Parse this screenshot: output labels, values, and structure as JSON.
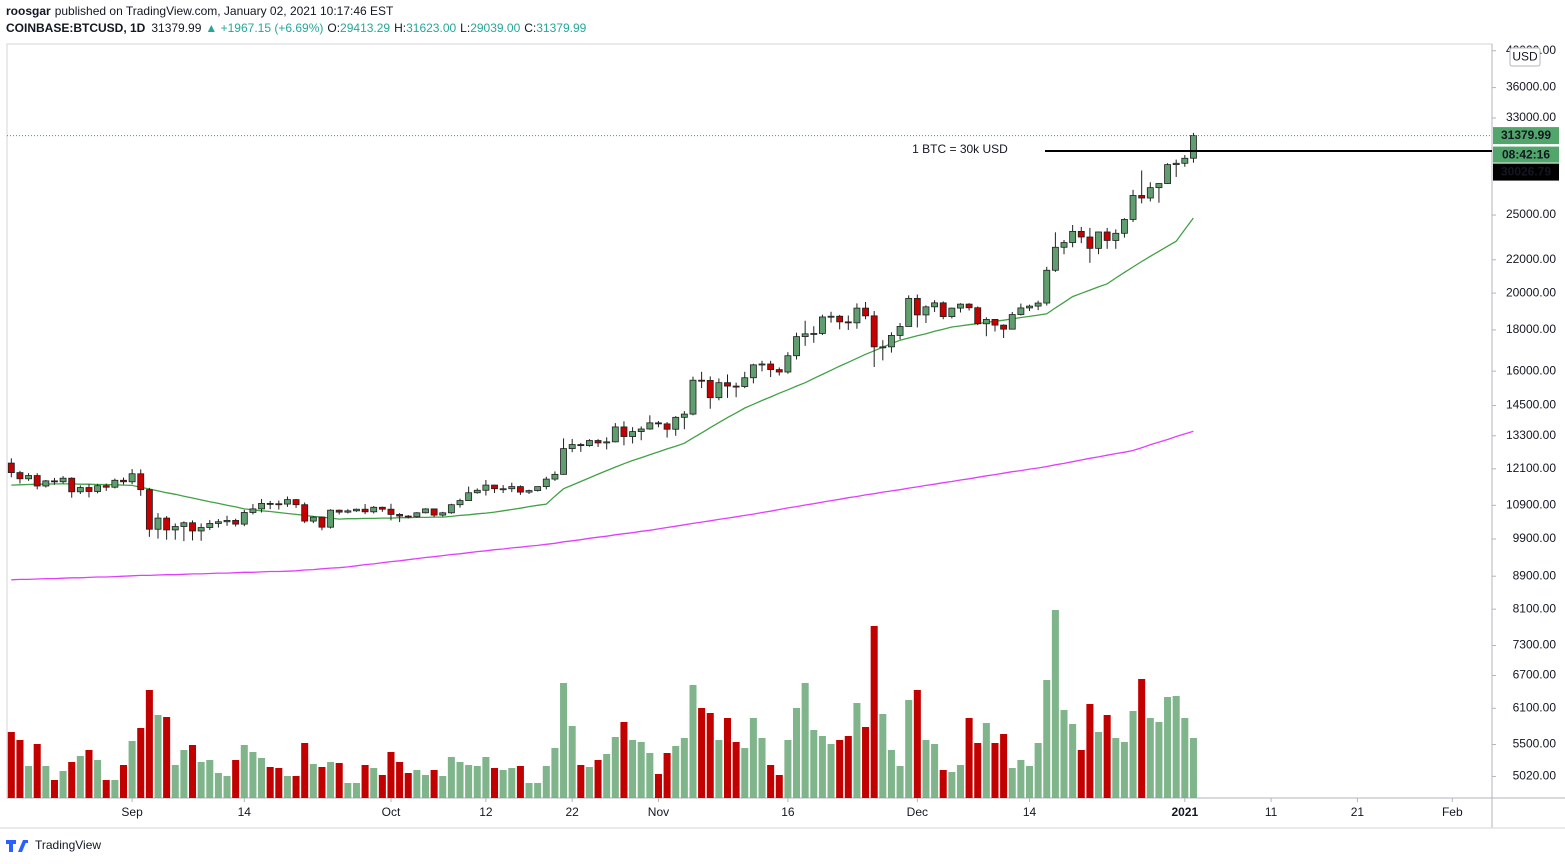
{
  "header": {
    "publisher": "roosgar",
    "published": "published on TradingView.com, January 02, 2021 10:17:46 EST",
    "symbol": "COINBASE:BTCUSD, 1D",
    "last": "31379.99",
    "change": "▲ +1967.15 (+6.69%)",
    "ohlc": [
      {
        "label": "O:",
        "value": "29413.29"
      },
      {
        "label": "H:",
        "value": "31623.00"
      },
      {
        "label": "L:",
        "value": "29039.00"
      },
      {
        "label": "C:",
        "value": "31379.99"
      }
    ]
  },
  "footer": {
    "brand": "TradingView"
  },
  "chart_data": {
    "type": "candlestick",
    "log_scale": true,
    "currency": "USD",
    "colors": {
      "up": "#5f9e6e",
      "down": "#c80000",
      "volume_up": "#6aa878",
      "volume_down": "#c30000"
    },
    "ylim": [
      4720,
      40660
    ],
    "yticks": [
      {
        "value": 40000,
        "label": "40000.00"
      },
      {
        "value": 36000,
        "label": "36000.00"
      },
      {
        "value": 33000,
        "label": "33000.00"
      },
      {
        "value": 25000,
        "label": "25000.00"
      },
      {
        "value": 22000,
        "label": "22000.00"
      },
      {
        "value": 20000,
        "label": "20000.00"
      },
      {
        "value": 18000,
        "label": "18000.00"
      },
      {
        "value": 16000,
        "label": "16000.00"
      },
      {
        "value": 14500,
        "label": "14500.00"
      },
      {
        "value": 13300,
        "label": "13300.00"
      },
      {
        "value": 12100,
        "label": "12100.00"
      },
      {
        "value": 10900,
        "label": "10900.00"
      },
      {
        "value": 9900,
        "label": "9900.00"
      },
      {
        "value": 8900,
        "label": "8900.00"
      },
      {
        "value": 8100,
        "label": "8100.00"
      },
      {
        "value": 7300,
        "label": "7300.00"
      },
      {
        "value": 6700,
        "label": "6700.00"
      },
      {
        "value": 6100,
        "label": "6100.00"
      },
      {
        "value": 5500,
        "label": "5500.00"
      },
      {
        "value": 5020,
        "label": "5020.00"
      }
    ],
    "xlim": [
      -0.5,
      171.6
    ],
    "xticks": [
      {
        "value": 14,
        "label": "Sep"
      },
      {
        "value": 27,
        "label": "14"
      },
      {
        "value": 44,
        "label": "Oct"
      },
      {
        "value": 55,
        "label": "12"
      },
      {
        "value": 65,
        "label": "22"
      },
      {
        "value": 75,
        "label": "Nov"
      },
      {
        "value": 90,
        "label": "16"
      },
      {
        "value": 105,
        "label": "Dec"
      },
      {
        "value": 118,
        "label": "14"
      },
      {
        "value": 136,
        "label": "2021"
      },
      {
        "value": 146,
        "label": "11"
      },
      {
        "value": 156,
        "label": "21"
      },
      {
        "value": 167,
        "label": "Feb"
      }
    ],
    "open": [
      12300,
      11970,
      11760,
      11870,
      11520,
      11690,
      11660,
      11780,
      11330,
      11470,
      11340,
      11530,
      11480,
      11710,
      11660,
      11930,
      11400,
      10180,
      10510,
      10160,
      10260,
      10370,
      10130,
      10230,
      10350,
      10400,
      10440,
      10330,
      10680,
      10790,
      10960,
      10950,
      10940,
      11080,
      10920,
      10420,
      10540,
      10240,
      10750,
      10690,
      10730,
      10780,
      10700,
      10840,
      10780,
      10620,
      10570,
      10550,
      10670,
      10790,
      10600,
      10670,
      10920,
      11050,
      11300,
      11380,
      11550,
      11430,
      11430,
      11500,
      11320,
      11370,
      11500,
      11750,
      11910,
      12820,
      12970,
      12930,
      13120,
      13030,
      13070,
      13640,
      13270,
      13460,
      13560,
      13800,
      13760,
      13550,
      14020,
      14150,
      15590,
      15580,
      14830,
      15480,
      15330,
      15310,
      15700,
      16290,
      16330,
      16070,
      15960,
      16720,
      17660,
      17800,
      17820,
      18680,
      18720,
      18420,
      18370,
      19160,
      18740,
      17150,
      17150,
      17720,
      18180,
      19700,
      18790,
      19230,
      19450,
      18700,
      19160,
      19380,
      19180,
      18320,
      18550,
      18250,
      18040,
      18810,
      19170,
      19270,
      19440,
      21350,
      22800,
      23110,
      23860,
      23480,
      22730,
      23820,
      23250,
      23730,
      24690,
      26440,
      26250,
      27040,
      27360,
      28880,
      28990,
      29413.29
    ],
    "high": [
      12470,
      12030,
      11950,
      11950,
      11720,
      11790,
      11850,
      11810,
      11540,
      11580,
      11590,
      11600,
      11770,
      11800,
      12090,
      12080,
      11460,
      10660,
      10570,
      10350,
      10410,
      10440,
      10350,
      10450,
      10480,
      10580,
      10490,
      10760,
      10940,
      11100,
      11040,
      11050,
      11180,
      11100,
      10990,
      10570,
      10560,
      10780,
      10770,
      10780,
      10800,
      10940,
      10880,
      10860,
      10950,
      10660,
      10600,
      10690,
      10810,
      10800,
      10700,
      10950,
      11110,
      11500,
      11440,
      11720,
      11560,
      11550,
      11630,
      11540,
      11400,
      11500,
      11830,
      12010,
      13200,
      13180,
      13030,
      13170,
      13170,
      13240,
      13790,
      13860,
      13630,
      13660,
      14100,
      13870,
      13830,
      14070,
      14270,
      15750,
      15970,
      15760,
      15670,
      15850,
      15480,
      15970,
      16340,
      16480,
      16480,
      16170,
      16890,
      17860,
      18480,
      18190,
      18800,
      18960,
      18790,
      18760,
      19420,
      19500,
      19000,
      17480,
      17880,
      18360,
      19870,
      19920,
      19310,
      19600,
      19530,
      19190,
      19430,
      19430,
      19250,
      18660,
      18560,
      18290,
      18950,
      19410,
      19350,
      19570,
      21560,
      23800,
      23280,
      24300,
      24170,
      24100,
      23840,
      24100,
      24000,
      24780,
      26870,
      28400,
      27460,
      27390,
      29000,
      29300,
      29680,
      31623
    ],
    "low": [
      11810,
      11600,
      11690,
      11410,
      11470,
      11560,
      11600,
      11140,
      11260,
      11150,
      11280,
      11360,
      11440,
      11570,
      11580,
      11200,
      9960,
      9910,
      9880,
      9880,
      9840,
      9860,
      9850,
      10160,
      10230,
      10280,
      10260,
      10270,
      10620,
      10680,
      10780,
      10770,
      10850,
      10820,
      10360,
      10360,
      10150,
      10200,
      10620,
      10650,
      10700,
      10630,
      10650,
      10700,
      10440,
      10390,
      10500,
      10520,
      10650,
      10540,
      10560,
      10640,
      10830,
      11050,
      11270,
      11210,
      11290,
      11290,
      11320,
      11230,
      11260,
      11340,
      11410,
      11690,
      11900,
      12690,
      12700,
      12890,
      12880,
      12790,
      13050,
      12940,
      13010,
      13130,
      13530,
      13630,
      13230,
      13300,
      13550,
      14100,
      15240,
      14370,
      14720,
      14820,
      14850,
      15240,
      15450,
      15990,
      15730,
      15800,
      15880,
      16540,
      17200,
      17350,
      17740,
      18380,
      18030,
      18000,
      18060,
      18560,
      16190,
      16500,
      16870,
      17520,
      18180,
      18130,
      18360,
      18950,
      18560,
      18600,
      18920,
      19030,
      18250,
      17680,
      17920,
      17590,
      18030,
      18760,
      19000,
      19050,
      19300,
      21250,
      22350,
      22800,
      23070,
      21810,
      22350,
      22700,
      22700,
      23440,
      24510,
      25850,
      25990,
      25900,
      27330,
      27880,
      28700,
      29039
    ],
    "close": [
      11970,
      11760,
      11870,
      11520,
      11690,
      11660,
      11780,
      11330,
      11470,
      11340,
      11530,
      11480,
      11710,
      11660,
      11930,
      11400,
      10180,
      10510,
      10160,
      10260,
      10370,
      10130,
      10230,
      10350,
      10400,
      10440,
      10330,
      10680,
      10790,
      10960,
      10950,
      10940,
      11080,
      10920,
      10420,
      10540,
      10240,
      10750,
      10690,
      10730,
      10780,
      10700,
      10840,
      10780,
      10620,
      10570,
      10550,
      10670,
      10790,
      10600,
      10670,
      10920,
      11050,
      11300,
      11380,
      11550,
      11430,
      11430,
      11500,
      11320,
      11370,
      11500,
      11750,
      11910,
      12820,
      12970,
      12930,
      13120,
      13030,
      13070,
      13640,
      13270,
      13460,
      13560,
      13800,
      13760,
      13550,
      14020,
      14150,
      15590,
      15580,
      14830,
      15480,
      15330,
      15310,
      15700,
      16290,
      16330,
      16070,
      15960,
      16720,
      17660,
      17800,
      17820,
      18680,
      18720,
      18420,
      18370,
      19160,
      18740,
      17150,
      17150,
      17720,
      18180,
      19700,
      18790,
      19230,
      19450,
      18700,
      19160,
      19380,
      19180,
      18320,
      18550,
      18250,
      18040,
      18810,
      19170,
      19270,
      19440,
      21350,
      22800,
      23110,
      23860,
      23480,
      22730,
      23820,
      23250,
      23730,
      24690,
      26440,
      26250,
      27040,
      27360,
      28880,
      28990,
      29410,
      31379.99
    ],
    "volume": [
      66,
      58,
      32,
      54,
      32,
      18,
      27,
      36,
      42,
      48,
      38,
      18,
      18,
      33,
      57,
      70,
      108,
      83,
      81,
      33,
      48,
      53,
      36,
      38,
      25,
      22,
      38,
      53,
      46,
      40,
      31,
      30,
      22,
      22,
      55,
      34,
      31,
      36,
      35,
      15,
      15,
      33,
      30,
      23,
      46,
      36,
      25,
      28,
      23,
      28,
      22,
      41,
      36,
      33,
      32,
      41,
      30,
      28,
      30,
      32,
      15,
      15,
      32,
      50,
      115,
      72,
      33,
      31,
      38,
      44,
      61,
      76,
      58,
      56,
      45,
      24,
      45,
      52,
      60,
      113,
      90,
      85,
      58,
      80,
      56,
      50,
      80,
      60,
      33,
      23,
      58,
      90,
      115,
      68,
      62,
      54,
      58,
      62,
      95,
      71,
      172,
      84,
      48,
      32,
      98,
      108,
      58,
      54,
      28,
      26,
      33,
      80,
      55,
      75,
      55,
      64,
      30,
      38,
      32,
      55,
      118,
      188,
      88,
      74,
      48,
      94,
      66,
      83,
      60,
      56,
      87,
      119,
      80,
      76,
      101,
      102,
      80,
      60
    ],
    "lines": [
      {
        "color": "#43a047",
        "values": [
          11550,
          11560,
          11570,
          11580,
          11580,
          11590,
          11590,
          11590,
          11580,
          11580,
          11570,
          11570,
          11560,
          11550,
          11540,
          11480,
          11420,
          11360,
          11300,
          11250,
          11190,
          11130,
          11070,
          11010,
          10960,
          10900,
          10850,
          10790,
          10760,
          10730,
          10710,
          10680,
          10650,
          10620,
          10590,
          10560,
          10540,
          10510,
          10480,
          10490,
          10490,
          10500,
          10500,
          10510,
          10510,
          10520,
          10520,
          10530,
          10530,
          10540,
          10540,
          10560,
          10590,
          10610,
          10640,
          10660,
          10690,
          10730,
          10770,
          10810,
          10860,
          10900,
          10940,
          11190,
          11430,
          11550,
          11670,
          11790,
          11920,
          12040,
          12160,
          12280,
          12390,
          12490,
          12600,
          12700,
          12810,
          12910,
          13020,
          13220,
          13410,
          13610,
          13810,
          14010,
          14200,
          14400,
          14550,
          14710,
          14860,
          15020,
          15170,
          15330,
          15480,
          15670,
          15850,
          16040,
          16230,
          16410,
          16600,
          16790,
          16960,
          17140,
          17310,
          17480,
          17590,
          17700,
          17810,
          17930,
          18040,
          18150,
          18210,
          18270,
          18330,
          18390,
          18450,
          18510,
          18580,
          18650,
          18710,
          18780,
          18850,
          19170,
          19480,
          19800,
          19990,
          20170,
          20360,
          20540,
          20880,
          21220,
          21550,
          21890,
          22220,
          22540,
          22870,
          23200,
          23990,
          24790
        ]
      },
      {
        "color": "#e040fb",
        "values": [
          8810,
          8820,
          8820,
          8830,
          8840,
          8840,
          8850,
          8860,
          8860,
          8870,
          8880,
          8880,
          8890,
          8900,
          8910,
          8920,
          8920,
          8930,
          8940,
          8940,
          8950,
          8960,
          8960,
          8970,
          8980,
          8980,
          8990,
          9000,
          9000,
          9010,
          9020,
          9020,
          9030,
          9040,
          9060,
          9070,
          9090,
          9110,
          9120,
          9140,
          9170,
          9200,
          9220,
          9250,
          9280,
          9300,
          9330,
          9360,
          9390,
          9410,
          9440,
          9470,
          9490,
          9520,
          9550,
          9570,
          9600,
          9620,
          9650,
          9670,
          9700,
          9720,
          9750,
          9780,
          9820,
          9850,
          9880,
          9920,
          9950,
          9980,
          10020,
          10050,
          10080,
          10120,
          10150,
          10190,
          10230,
          10270,
          10310,
          10350,
          10390,
          10430,
          10470,
          10510,
          10550,
          10590,
          10630,
          10680,
          10720,
          10770,
          10820,
          10860,
          10910,
          10950,
          11000,
          11050,
          11090,
          11140,
          11180,
          11230,
          11270,
          11320,
          11360,
          11400,
          11450,
          11490,
          11540,
          11580,
          11630,
          11670,
          11720,
          11760,
          11810,
          11860,
          11900,
          11950,
          12000,
          12040,
          12090,
          12130,
          12180,
          12240,
          12290,
          12350,
          12410,
          12470,
          12520,
          12580,
          12640,
          12690,
          12750,
          12850,
          12960,
          13060,
          13160,
          13270,
          13370,
          13470
        ]
      }
    ],
    "countdown": "08:42:16",
    "annotation": {
      "text": "1 BTC = 30k USD",
      "value": 30026.79
    }
  }
}
